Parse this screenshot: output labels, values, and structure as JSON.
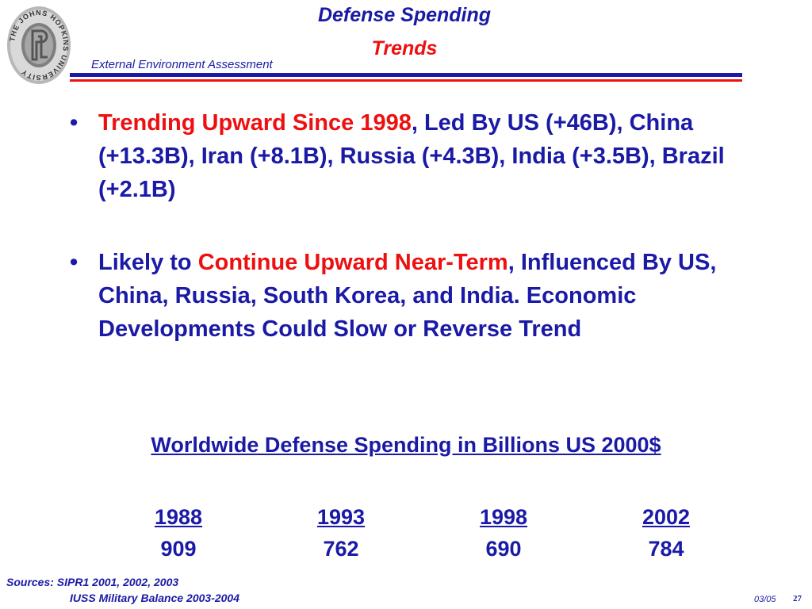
{
  "colors": {
    "navy": "#1a1aa6",
    "red": "#ee1010",
    "text": "#000000"
  },
  "logo": {
    "icon": "johns-hopkins-seal-icon",
    "seal_text": "THE JOHNS HOPKINS UNIVERSITY"
  },
  "header": {
    "title_line1": "Defense Spending",
    "title_line2": "Trends",
    "subtitle": "External Environment Assessment"
  },
  "bullets": [
    {
      "marker": "•",
      "segments": [
        {
          "text": "Trending Upward Since 1998",
          "color": "red"
        },
        {
          "text": ", Led By US (+46B), China (+13.3B), Iran (+8.1B), Russia (+4.3B), India (+3.5B), Brazil (+2.1B)",
          "color": "navy"
        }
      ]
    },
    {
      "marker": "•",
      "segments": [
        {
          "text": "Likely to ",
          "color": "navy"
        },
        {
          "text": "Continue Upward Near-Term",
          "color": "red"
        },
        {
          "text": ", Influenced By US, China, Russia, South Korea, and India. Economic Developments Could Slow or Reverse Trend",
          "color": "navy"
        }
      ]
    }
  ],
  "spending": {
    "heading": "Worldwide Defense Spending in Billions US 2000$",
    "columns": [
      {
        "year": "1988",
        "value": "909"
      },
      {
        "year": "1993",
        "value": "762"
      },
      {
        "year": "1998",
        "value": "690"
      },
      {
        "year": "2002",
        "value": "784"
      }
    ]
  },
  "footer": {
    "sources_line1": "Sources: SIPR1 2001, 2002, 2003",
    "sources_line2": "IUSS Military Balance 2003-2004",
    "date": "03/05",
    "page": "27"
  }
}
